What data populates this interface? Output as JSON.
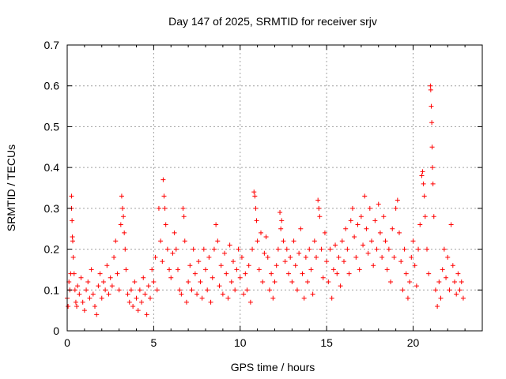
{
  "chart_data": {
    "type": "scatter",
    "title": "Day 147 of 2025, SRMTID for receiver srjv",
    "xlabel": "GPS time / hours",
    "ylabel": "SRMTID / TECUs",
    "xlim": [
      0,
      24
    ],
    "ylim": [
      0,
      0.7
    ],
    "xticks": [
      "0",
      "5",
      "10",
      "15",
      "20"
    ],
    "xtick_values": [
      0,
      5,
      10,
      15,
      20
    ],
    "yticks": [
      "0",
      "0.1",
      "0.2",
      "0.3",
      "0.4",
      "0.5",
      "0.6",
      "0.7"
    ],
    "ytick_values": [
      0,
      0.1,
      0.2,
      0.3,
      0.4,
      0.5,
      0.6,
      0.7
    ],
    "grid": true,
    "marker": "+",
    "marker_color": "#ff0000",
    "series": [
      {
        "name": "srjv",
        "points": [
          [
            0.0,
            0.08
          ],
          [
            0.05,
            0.06
          ],
          [
            0.1,
            0.12
          ],
          [
            0.15,
            0.1
          ],
          [
            0.2,
            0.14
          ],
          [
            0.25,
            0.33
          ],
          [
            0.25,
            0.3
          ],
          [
            0.28,
            0.27
          ],
          [
            0.3,
            0.23
          ],
          [
            0.32,
            0.22
          ],
          [
            0.35,
            0.18
          ],
          [
            0.4,
            0.14
          ],
          [
            0.45,
            0.1
          ],
          [
            0.5,
            0.07
          ],
          [
            0.55,
            0.06
          ],
          [
            0.6,
            0.11
          ],
          [
            0.7,
            0.09
          ],
          [
            0.8,
            0.13
          ],
          [
            0.9,
            0.07
          ],
          [
            1.0,
            0.05
          ],
          [
            1.1,
            0.1
          ],
          [
            1.2,
            0.12
          ],
          [
            1.3,
            0.08
          ],
          [
            1.4,
            0.15
          ],
          [
            1.5,
            0.09
          ],
          [
            1.6,
            0.06
          ],
          [
            1.7,
            0.04
          ],
          [
            1.8,
            0.11
          ],
          [
            1.9,
            0.14
          ],
          [
            2.0,
            0.08
          ],
          [
            2.1,
            0.12
          ],
          [
            2.2,
            0.1
          ],
          [
            2.3,
            0.16
          ],
          [
            2.4,
            0.09
          ],
          [
            2.5,
            0.13
          ],
          [
            2.6,
            0.11
          ],
          [
            2.7,
            0.18
          ],
          [
            2.8,
            0.22
          ],
          [
            2.9,
            0.14
          ],
          [
            3.0,
            0.1
          ],
          [
            3.1,
            0.26
          ],
          [
            3.15,
            0.33
          ],
          [
            3.2,
            0.3
          ],
          [
            3.25,
            0.28
          ],
          [
            3.3,
            0.24
          ],
          [
            3.35,
            0.2
          ],
          [
            3.4,
            0.15
          ],
          [
            3.5,
            0.09
          ],
          [
            3.6,
            0.07
          ],
          [
            3.7,
            0.1
          ],
          [
            3.8,
            0.06
          ],
          [
            3.9,
            0.12
          ],
          [
            4.0,
            0.08
          ],
          [
            4.1,
            0.05
          ],
          [
            4.2,
            0.1
          ],
          [
            4.3,
            0.07
          ],
          [
            4.4,
            0.13
          ],
          [
            4.5,
            0.09
          ],
          [
            4.6,
            0.04
          ],
          [
            4.7,
            0.11
          ],
          [
            4.8,
            0.08
          ],
          [
            4.9,
            0.15
          ],
          [
            5.0,
            0.12
          ],
          [
            5.1,
            0.18
          ],
          [
            5.2,
            0.1
          ],
          [
            5.3,
            0.3
          ],
          [
            5.4,
            0.22
          ],
          [
            5.5,
            0.17
          ],
          [
            5.55,
            0.37
          ],
          [
            5.6,
            0.33
          ],
          [
            5.65,
            0.3
          ],
          [
            5.7,
            0.26
          ],
          [
            5.8,
            0.2
          ],
          [
            5.9,
            0.15
          ],
          [
            6.0,
            0.13
          ],
          [
            6.1,
            0.19
          ],
          [
            6.2,
            0.24
          ],
          [
            6.3,
            0.2
          ],
          [
            6.4,
            0.15
          ],
          [
            6.5,
            0.1
          ],
          [
            6.6,
            0.09
          ],
          [
            6.7,
            0.3
          ],
          [
            6.75,
            0.28
          ],
          [
            6.8,
            0.22
          ],
          [
            6.9,
            0.07
          ],
          [
            7.0,
            0.12
          ],
          [
            7.1,
            0.16
          ],
          [
            7.2,
            0.1
          ],
          [
            7.3,
            0.2
          ],
          [
            7.4,
            0.14
          ],
          [
            7.5,
            0.09
          ],
          [
            7.6,
            0.17
          ],
          [
            7.7,
            0.12
          ],
          [
            7.8,
            0.08
          ],
          [
            7.9,
            0.2
          ],
          [
            8.0,
            0.15
          ],
          [
            8.1,
            0.1
          ],
          [
            8.2,
            0.18
          ],
          [
            8.3,
            0.07
          ],
          [
            8.4,
            0.13
          ],
          [
            8.5,
            0.2
          ],
          [
            8.6,
            0.26
          ],
          [
            8.7,
            0.22
          ],
          [
            8.8,
            0.11
          ],
          [
            8.9,
            0.16
          ],
          [
            9.0,
            0.09
          ],
          [
            9.1,
            0.19
          ],
          [
            9.2,
            0.14
          ],
          [
            9.3,
            0.08
          ],
          [
            9.4,
            0.21
          ],
          [
            9.5,
            0.12
          ],
          [
            9.6,
            0.17
          ],
          [
            9.7,
            0.1
          ],
          [
            9.8,
            0.15
          ],
          [
            9.9,
            0.2
          ],
          [
            10.0,
            0.13
          ],
          [
            10.1,
            0.18
          ],
          [
            10.2,
            0.09
          ],
          [
            10.3,
            0.14
          ],
          [
            10.4,
            0.1
          ],
          [
            10.5,
            0.16
          ],
          [
            10.6,
            0.07
          ],
          [
            10.7,
            0.2
          ],
          [
            10.8,
            0.34
          ],
          [
            10.85,
            0.33
          ],
          [
            10.9,
            0.3
          ],
          [
            10.95,
            0.27
          ],
          [
            11.0,
            0.22
          ],
          [
            11.1,
            0.15
          ],
          [
            11.2,
            0.24
          ],
          [
            11.3,
            0.12
          ],
          [
            11.4,
            0.19
          ],
          [
            11.5,
            0.23
          ],
          [
            11.6,
            0.18
          ],
          [
            11.7,
            0.1
          ],
          [
            11.8,
            0.14
          ],
          [
            11.9,
            0.08
          ],
          [
            12.0,
            0.12
          ],
          [
            12.1,
            0.16
          ],
          [
            12.2,
            0.2
          ],
          [
            12.3,
            0.29
          ],
          [
            12.35,
            0.25
          ],
          [
            12.4,
            0.27
          ],
          [
            12.5,
            0.22
          ],
          [
            12.6,
            0.17
          ],
          [
            12.7,
            0.2
          ],
          [
            12.8,
            0.14
          ],
          [
            12.9,
            0.18
          ],
          [
            13.0,
            0.12
          ],
          [
            13.1,
            0.22
          ],
          [
            13.2,
            0.16
          ],
          [
            13.3,
            0.1
          ],
          [
            13.4,
            0.19
          ],
          [
            13.5,
            0.25
          ],
          [
            13.6,
            0.14
          ],
          [
            13.7,
            0.08
          ],
          [
            13.8,
            0.18
          ],
          [
            13.9,
            0.12
          ],
          [
            14.0,
            0.2
          ],
          [
            14.1,
            0.15
          ],
          [
            14.2,
            0.09
          ],
          [
            14.3,
            0.22
          ],
          [
            14.4,
            0.18
          ],
          [
            14.5,
            0.32
          ],
          [
            14.55,
            0.3
          ],
          [
            14.6,
            0.28
          ],
          [
            14.7,
            0.2
          ],
          [
            14.8,
            0.13
          ],
          [
            14.9,
            0.24
          ],
          [
            15.0,
            0.17
          ],
          [
            15.1,
            0.12
          ],
          [
            15.2,
            0.2
          ],
          [
            15.3,
            0.08
          ],
          [
            15.4,
            0.15
          ],
          [
            15.5,
            0.21
          ],
          [
            15.6,
            0.14
          ],
          [
            15.7,
            0.18
          ],
          [
            15.8,
            0.11
          ],
          [
            15.9,
            0.22
          ],
          [
            16.0,
            0.17
          ],
          [
            16.1,
            0.25
          ],
          [
            16.2,
            0.2
          ],
          [
            16.3,
            0.14
          ],
          [
            16.4,
            0.27
          ],
          [
            16.5,
            0.3
          ],
          [
            16.6,
            0.23
          ],
          [
            16.7,
            0.18
          ],
          [
            16.8,
            0.26
          ],
          [
            16.9,
            0.15
          ],
          [
            17.0,
            0.28
          ],
          [
            17.1,
            0.21
          ],
          [
            17.2,
            0.33
          ],
          [
            17.3,
            0.25
          ],
          [
            17.4,
            0.19
          ],
          [
            17.5,
            0.3
          ],
          [
            17.6,
            0.22
          ],
          [
            17.7,
            0.16
          ],
          [
            17.8,
            0.27
          ],
          [
            17.9,
            0.2
          ],
          [
            18.0,
            0.31
          ],
          [
            18.1,
            0.24
          ],
          [
            18.2,
            0.18
          ],
          [
            18.3,
            0.28
          ],
          [
            18.4,
            0.22
          ],
          [
            18.5,
            0.15
          ],
          [
            18.6,
            0.2
          ],
          [
            18.7,
            0.12
          ],
          [
            18.8,
            0.25
          ],
          [
            18.9,
            0.18
          ],
          [
            19.0,
            0.3
          ],
          [
            19.1,
            0.32
          ],
          [
            19.2,
            0.24
          ],
          [
            19.3,
            0.17
          ],
          [
            19.4,
            0.1
          ],
          [
            19.5,
            0.2
          ],
          [
            19.6,
            0.14
          ],
          [
            19.7,
            0.08
          ],
          [
            19.8,
            0.12
          ],
          [
            19.9,
            0.18
          ],
          [
            20.0,
            0.22
          ],
          [
            20.1,
            0.16
          ],
          [
            20.2,
            0.11
          ],
          [
            20.3,
            0.2
          ],
          [
            20.4,
            0.26
          ],
          [
            20.5,
            0.38
          ],
          [
            20.55,
            0.39
          ],
          [
            20.6,
            0.36
          ],
          [
            20.65,
            0.33
          ],
          [
            20.7,
            0.28
          ],
          [
            20.8,
            0.2
          ],
          [
            20.9,
            0.14
          ],
          [
            21.0,
            0.6
          ],
          [
            21.02,
            0.59
          ],
          [
            21.05,
            0.55
          ],
          [
            21.08,
            0.51
          ],
          [
            21.1,
            0.45
          ],
          [
            21.12,
            0.4
          ],
          [
            21.15,
            0.36
          ],
          [
            21.2,
            0.28
          ],
          [
            21.3,
            0.1
          ],
          [
            21.4,
            0.06
          ],
          [
            21.5,
            0.12
          ],
          [
            21.6,
            0.08
          ],
          [
            21.7,
            0.15
          ],
          [
            21.8,
            0.2
          ],
          [
            21.9,
            0.13
          ],
          [
            22.0,
            0.18
          ],
          [
            22.1,
            0.1
          ],
          [
            22.2,
            0.26
          ],
          [
            22.3,
            0.16
          ],
          [
            22.4,
            0.12
          ],
          [
            22.5,
            0.09
          ],
          [
            22.6,
            0.14
          ],
          [
            22.7,
            0.1
          ],
          [
            22.8,
            0.12
          ],
          [
            22.9,
            0.08
          ]
        ]
      }
    ]
  }
}
